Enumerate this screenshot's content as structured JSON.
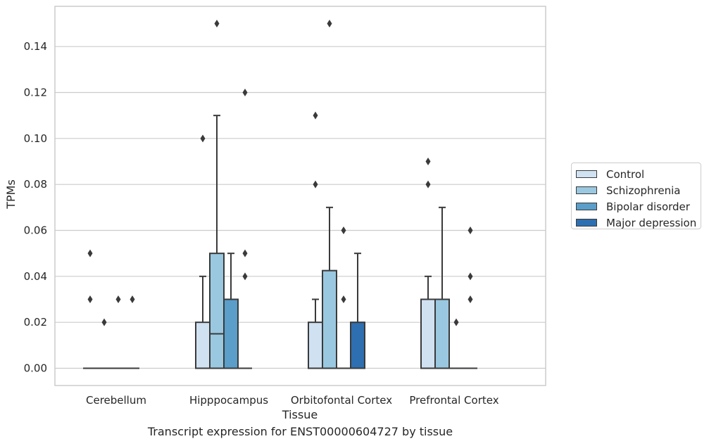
{
  "chart_data": {
    "type": "box",
    "title": "",
    "caption": "Transcript expression for ENST00000604727 by tissue",
    "xlabel": "Tissue",
    "ylabel": "TPMs",
    "ylim": [
      -0.0075,
      0.1575
    ],
    "yticks": [
      "0.00",
      "0.02",
      "0.04",
      "0.06",
      "0.08",
      "0.10",
      "0.12",
      "0.14"
    ],
    "grid": "horizontal",
    "legend_placement": "right",
    "categories": [
      "Cerebellum",
      "Hipppocampus",
      "Orbitofontal Cortex",
      "Prefrontal Cortex"
    ],
    "series": [
      {
        "name": "Control",
        "color": "#d0e1f2",
        "boxes": [
          {
            "q1": 0,
            "median": 0,
            "q3": 0,
            "whislo": 0,
            "whishi": 0,
            "fliers": [
              0.05,
              0.03
            ]
          },
          {
            "q1": 0,
            "median": 0,
            "q3": 0.02,
            "whislo": 0,
            "whishi": 0.04,
            "fliers": [
              0.1
            ]
          },
          {
            "q1": 0,
            "median": 0,
            "q3": 0.02,
            "whislo": 0,
            "whishi": 0.03,
            "fliers": [
              0.11,
              0.08
            ]
          },
          {
            "q1": 0,
            "median": 0,
            "q3": 0.03,
            "whislo": 0,
            "whishi": 0.04,
            "fliers": [
              0.09,
              0.08
            ]
          }
        ]
      },
      {
        "name": "Schizophrenia",
        "color": "#9ac8e0",
        "boxes": [
          {
            "q1": 0,
            "median": 0,
            "q3": 0,
            "whislo": 0,
            "whishi": 0,
            "fliers": [
              0.02
            ]
          },
          {
            "q1": 0,
            "median": 0.015,
            "q3": 0.05,
            "whislo": 0,
            "whishi": 0.11,
            "fliers": [
              0.15
            ]
          },
          {
            "q1": 0,
            "median": 0,
            "q3": 0.0425,
            "whislo": 0,
            "whishi": 0.07,
            "fliers": [
              0.15
            ]
          },
          {
            "q1": 0,
            "median": 0,
            "q3": 0.03,
            "whislo": 0,
            "whishi": 0.07,
            "fliers": []
          }
        ]
      },
      {
        "name": "Bipolar disorder",
        "color": "#5a9ec9",
        "boxes": [
          {
            "q1": 0,
            "median": 0,
            "q3": 0,
            "whislo": 0,
            "whishi": 0,
            "fliers": [
              0.03
            ]
          },
          {
            "q1": 0,
            "median": 0,
            "q3": 0.03,
            "whislo": 0,
            "whishi": 0.05,
            "fliers": []
          },
          {
            "q1": 0,
            "median": 0,
            "q3": 0,
            "whislo": 0,
            "whishi": 0,
            "fliers": [
              0.06,
              0.03
            ]
          },
          {
            "q1": 0,
            "median": 0,
            "q3": 0,
            "whislo": 0,
            "whishi": 0,
            "fliers": [
              0.02
            ]
          }
        ]
      },
      {
        "name": "Major depression",
        "color": "#2d6fb0",
        "boxes": [
          {
            "q1": 0,
            "median": 0,
            "q3": 0,
            "whislo": 0,
            "whishi": 0,
            "fliers": [
              0.03
            ]
          },
          {
            "q1": 0,
            "median": 0,
            "q3": 0,
            "whislo": 0,
            "whishi": 0,
            "fliers": [
              0.12,
              0.05,
              0.04
            ]
          },
          {
            "q1": 0,
            "median": 0,
            "q3": 0.02,
            "whislo": 0,
            "whishi": 0.05,
            "fliers": []
          },
          {
            "q1": 0,
            "median": 0,
            "q3": 0,
            "whislo": 0,
            "whishi": 0,
            "fliers": [
              0.06,
              0.04,
              0.03
            ]
          }
        ]
      }
    ]
  }
}
